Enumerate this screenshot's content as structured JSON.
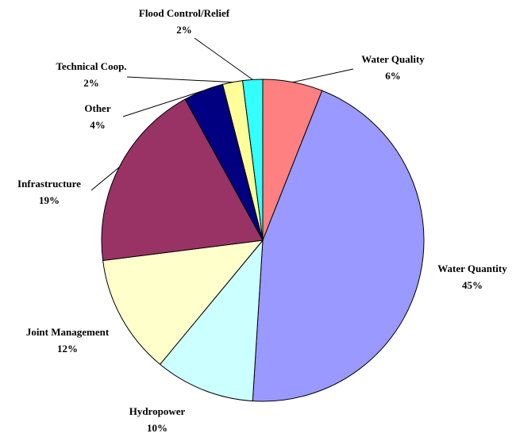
{
  "chart_data": {
    "type": "pie",
    "categories": [
      "Water Quality",
      "Water Quantity",
      "Hydropower",
      "Joint Management",
      "Infrastructure",
      "Other",
      "Technical Coop.",
      "Flood Control/Relief"
    ],
    "values": [
      6,
      45,
      10,
      12,
      19,
      4,
      2,
      2
    ],
    "value_labels": [
      "6%",
      "45%",
      "10%",
      "12%",
      "19%",
      "4%",
      "2%",
      "2%"
    ],
    "colors": [
      "#ff8080",
      "#9999ff",
      "#ccffff",
      "#ffffcc",
      "#993366",
      "#000080",
      "#ffff99",
      "#33ffff"
    ]
  }
}
